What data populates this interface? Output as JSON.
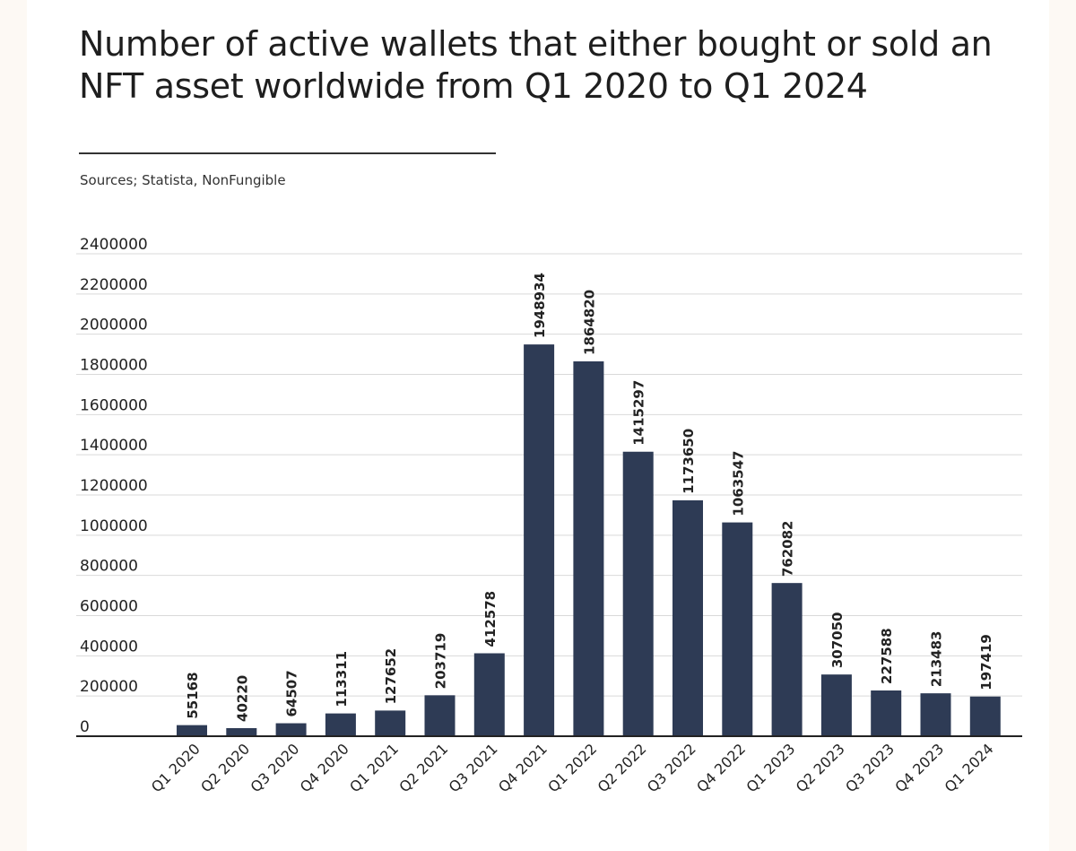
{
  "header": {
    "title": "Number of active wallets that either bought or sold an NFT asset worldwide from Q1 2020 to Q1 2024",
    "source": "Sources; Statista, NonFungible"
  },
  "colors": {
    "bar": "#2e3b55",
    "grid": "#d9d9d9",
    "axis": "#222222",
    "text": "#222222",
    "background": "#ffffff"
  },
  "chart_data": {
    "type": "bar",
    "title": "Number of active wallets that either bought or sold an NFT asset worldwide from Q1 2020 to Q1 2024",
    "xlabel": "",
    "ylabel": "",
    "ylim": [
      0,
      2400000
    ],
    "yticks": [
      0,
      200000,
      400000,
      600000,
      800000,
      1000000,
      1200000,
      1400000,
      1600000,
      1800000,
      2000000,
      2200000,
      2400000
    ],
    "grid": true,
    "legend": "none",
    "categories": [
      "Q1 2020",
      "Q2 2020",
      "Q3 2020",
      "Q4 2020",
      "Q1 2021",
      "Q2 2021",
      "Q3 2021",
      "Q4 2021",
      "Q1 2022",
      "Q2 2022",
      "Q3 2022",
      "Q4 2022",
      "Q1 2023",
      "Q2 2023",
      "Q3 2023",
      "Q4 2023",
      "Q1 2024"
    ],
    "values": [
      55168,
      40220,
      64507,
      113311,
      127652,
      203719,
      412578,
      1948934,
      1864820,
      1415297,
      1173650,
      1063547,
      762082,
      307050,
      227588,
      213483,
      197419
    ],
    "data_labels": true
  }
}
